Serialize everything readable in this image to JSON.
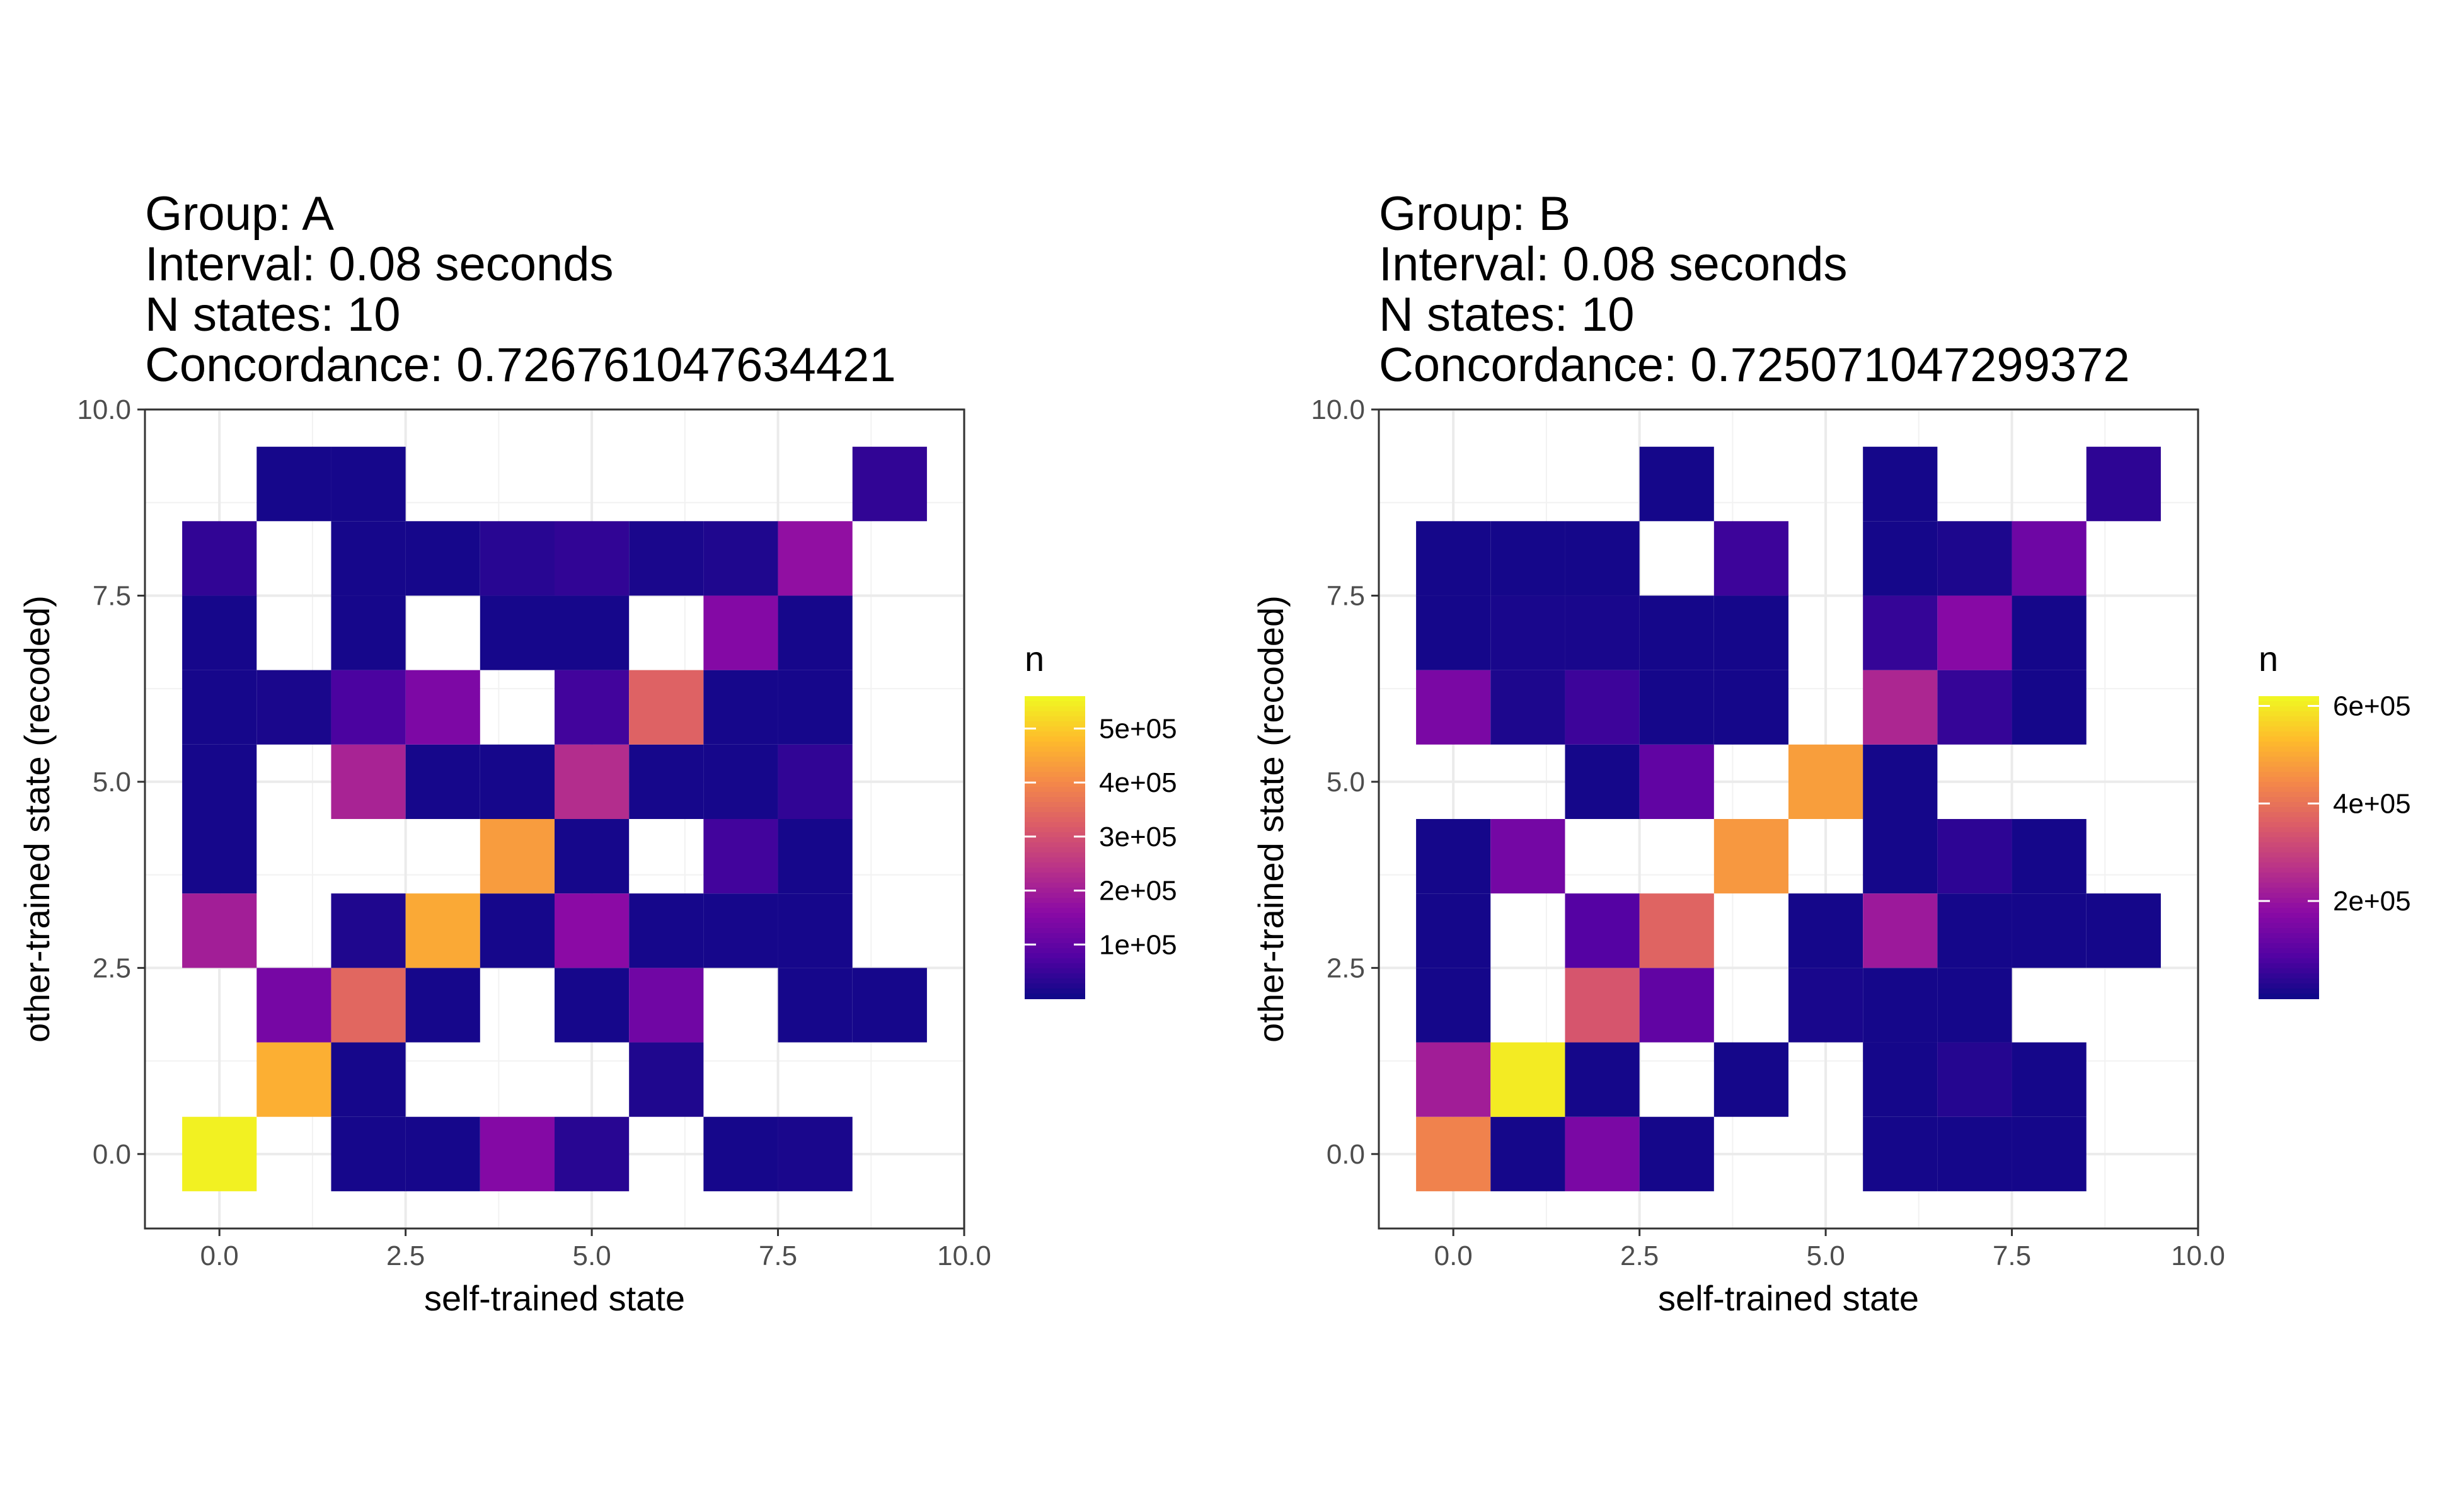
{
  "chart_data": [
    {
      "type": "heatmap",
      "title_lines": [
        "Group: A",
        "Interval: 0.08 seconds",
        "N states: 10",
        "Concordance: 0.726761047634421"
      ],
      "xlabel": "self-trained state",
      "ylabel": "other-trained state (recoded)",
      "xlim": [
        -1,
        10
      ],
      "ylim": [
        -1,
        10
      ],
      "x_ticks": [
        0,
        2.5,
        5,
        7.5,
        10
      ],
      "x_tick_labels": [
        "0.0",
        "2.5",
        "5.0",
        "7.5",
        "10.0"
      ],
      "y_ticks": [
        0,
        2.5,
        5,
        7.5,
        10
      ],
      "y_tick_labels": [
        "0.0",
        "2.5",
        "5.0",
        "7.5",
        "10.0"
      ],
      "grid": true,
      "colormap": "plasma",
      "color_range": [
        0,
        560000
      ],
      "legend": {
        "title": "n",
        "position": "right",
        "ticks": [
          100000,
          200000,
          300000,
          400000,
          500000
        ],
        "tick_labels": [
          "1e+05",
          "2e+05",
          "3e+05",
          "4e+05",
          "5e+05"
        ]
      },
      "cells": [
        {
          "x": 0,
          "y": 0,
          "n": 550000
        },
        {
          "x": 2,
          "y": 0,
          "n": 10000
        },
        {
          "x": 3,
          "y": 0,
          "n": 10000
        },
        {
          "x": 4,
          "y": 0,
          "n": 150000
        },
        {
          "x": 5,
          "y": 0,
          "n": 30000
        },
        {
          "x": 7,
          "y": 0,
          "n": 10000
        },
        {
          "x": 8,
          "y": 0,
          "n": 15000
        },
        {
          "x": 1,
          "y": 1,
          "n": 460000
        },
        {
          "x": 2,
          "y": 1,
          "n": 10000
        },
        {
          "x": 6,
          "y": 1,
          "n": 20000
        },
        {
          "x": 1,
          "y": 2,
          "n": 130000
        },
        {
          "x": 2,
          "y": 2,
          "n": 340000
        },
        {
          "x": 3,
          "y": 2,
          "n": 10000
        },
        {
          "x": 5,
          "y": 2,
          "n": 10000
        },
        {
          "x": 6,
          "y": 2,
          "n": 120000
        },
        {
          "x": 8,
          "y": 2,
          "n": 10000
        },
        {
          "x": 9,
          "y": 2,
          "n": 10000
        },
        {
          "x": 0,
          "y": 3,
          "n": 200000
        },
        {
          "x": 2,
          "y": 3,
          "n": 20000
        },
        {
          "x": 3,
          "y": 3,
          "n": 450000
        },
        {
          "x": 4,
          "y": 3,
          "n": 10000
        },
        {
          "x": 5,
          "y": 3,
          "n": 160000
        },
        {
          "x": 6,
          "y": 3,
          "n": 10000
        },
        {
          "x": 7,
          "y": 3,
          "n": 10000
        },
        {
          "x": 8,
          "y": 3,
          "n": 10000
        },
        {
          "x": 0,
          "y": 4,
          "n": 10000
        },
        {
          "x": 4,
          "y": 4,
          "n": 430000
        },
        {
          "x": 5,
          "y": 4,
          "n": 10000
        },
        {
          "x": 7,
          "y": 4,
          "n": 60000
        },
        {
          "x": 8,
          "y": 4,
          "n": 10000
        },
        {
          "x": 0,
          "y": 5,
          "n": 10000
        },
        {
          "x": 2,
          "y": 5,
          "n": 210000
        },
        {
          "x": 3,
          "y": 5,
          "n": 10000
        },
        {
          "x": 4,
          "y": 5,
          "n": 10000
        },
        {
          "x": 5,
          "y": 5,
          "n": 230000
        },
        {
          "x": 6,
          "y": 5,
          "n": 10000
        },
        {
          "x": 7,
          "y": 5,
          "n": 10000
        },
        {
          "x": 8,
          "y": 5,
          "n": 40000
        },
        {
          "x": 0,
          "y": 6,
          "n": 10000
        },
        {
          "x": 1,
          "y": 6,
          "n": 15000
        },
        {
          "x": 2,
          "y": 6,
          "n": 70000
        },
        {
          "x": 3,
          "y": 6,
          "n": 140000
        },
        {
          "x": 5,
          "y": 6,
          "n": 60000
        },
        {
          "x": 6,
          "y": 6,
          "n": 330000
        },
        {
          "x": 7,
          "y": 6,
          "n": 10000
        },
        {
          "x": 8,
          "y": 6,
          "n": 10000
        },
        {
          "x": 0,
          "y": 7,
          "n": 10000
        },
        {
          "x": 2,
          "y": 7,
          "n": 10000
        },
        {
          "x": 4,
          "y": 7,
          "n": 10000
        },
        {
          "x": 5,
          "y": 7,
          "n": 10000
        },
        {
          "x": 7,
          "y": 7,
          "n": 150000
        },
        {
          "x": 8,
          "y": 7,
          "n": 10000
        },
        {
          "x": 0,
          "y": 8,
          "n": 40000
        },
        {
          "x": 2,
          "y": 8,
          "n": 10000
        },
        {
          "x": 3,
          "y": 8,
          "n": 10000
        },
        {
          "x": 4,
          "y": 8,
          "n": 30000
        },
        {
          "x": 5,
          "y": 8,
          "n": 40000
        },
        {
          "x": 6,
          "y": 8,
          "n": 15000
        },
        {
          "x": 7,
          "y": 8,
          "n": 20000
        },
        {
          "x": 8,
          "y": 8,
          "n": 170000
        },
        {
          "x": 1,
          "y": 9,
          "n": 10000
        },
        {
          "x": 2,
          "y": 9,
          "n": 10000
        },
        {
          "x": 9,
          "y": 9,
          "n": 40000
        }
      ]
    },
    {
      "type": "heatmap",
      "title_lines": [
        "Group: B",
        "Interval: 0.08 seconds",
        "N states: 10",
        "Concordance: 0.725071047299372"
      ],
      "xlabel": "self-trained state",
      "ylabel": "other-trained state (recoded)",
      "xlim": [
        -1,
        10
      ],
      "ylim": [
        -1,
        10
      ],
      "x_ticks": [
        0,
        2.5,
        5,
        7.5,
        10
      ],
      "x_tick_labels": [
        "0.0",
        "2.5",
        "5.0",
        "7.5",
        "10.0"
      ],
      "y_ticks": [
        0,
        2.5,
        5,
        7.5,
        10
      ],
      "y_tick_labels": [
        "0.0",
        "2.5",
        "5.0",
        "7.5",
        "10.0"
      ],
      "grid": true,
      "colormap": "plasma",
      "color_range": [
        0,
        620000
      ],
      "legend": {
        "title": "n",
        "position": "right",
        "ticks": [
          200000,
          400000,
          600000
        ],
        "tick_labels": [
          "2e+05",
          "4e+05",
          "6e+05"
        ]
      },
      "cells": [
        {
          "x": 0,
          "y": 0,
          "n": 430000
        },
        {
          "x": 1,
          "y": 0,
          "n": 10000
        },
        {
          "x": 2,
          "y": 0,
          "n": 150000
        },
        {
          "x": 3,
          "y": 0,
          "n": 10000
        },
        {
          "x": 6,
          "y": 0,
          "n": 10000
        },
        {
          "x": 7,
          "y": 0,
          "n": 10000
        },
        {
          "x": 8,
          "y": 0,
          "n": 10000
        },
        {
          "x": 0,
          "y": 1,
          "n": 220000
        },
        {
          "x": 1,
          "y": 1,
          "n": 600000
        },
        {
          "x": 2,
          "y": 1,
          "n": 10000
        },
        {
          "x": 4,
          "y": 1,
          "n": 10000
        },
        {
          "x": 6,
          "y": 1,
          "n": 10000
        },
        {
          "x": 7,
          "y": 1,
          "n": 30000
        },
        {
          "x": 8,
          "y": 1,
          "n": 10000
        },
        {
          "x": 0,
          "y": 2,
          "n": 10000
        },
        {
          "x": 2,
          "y": 2,
          "n": 340000
        },
        {
          "x": 3,
          "y": 2,
          "n": 110000
        },
        {
          "x": 5,
          "y": 2,
          "n": 15000
        },
        {
          "x": 6,
          "y": 2,
          "n": 10000
        },
        {
          "x": 7,
          "y": 2,
          "n": 10000
        },
        {
          "x": 0,
          "y": 3,
          "n": 10000
        },
        {
          "x": 2,
          "y": 3,
          "n": 90000
        },
        {
          "x": 3,
          "y": 3,
          "n": 370000
        },
        {
          "x": 5,
          "y": 3,
          "n": 10000
        },
        {
          "x": 6,
          "y": 3,
          "n": 210000
        },
        {
          "x": 7,
          "y": 3,
          "n": 10000
        },
        {
          "x": 8,
          "y": 3,
          "n": 10000
        },
        {
          "x": 9,
          "y": 3,
          "n": 10000
        },
        {
          "x": 0,
          "y": 4,
          "n": 10000
        },
        {
          "x": 1,
          "y": 4,
          "n": 140000
        },
        {
          "x": 4,
          "y": 4,
          "n": 470000
        },
        {
          "x": 6,
          "y": 4,
          "n": 10000
        },
        {
          "x": 7,
          "y": 4,
          "n": 40000
        },
        {
          "x": 8,
          "y": 4,
          "n": 10000
        },
        {
          "x": 2,
          "y": 5,
          "n": 10000
        },
        {
          "x": 3,
          "y": 5,
          "n": 110000
        },
        {
          "x": 5,
          "y": 5,
          "n": 480000
        },
        {
          "x": 6,
          "y": 5,
          "n": 10000
        },
        {
          "x": 0,
          "y": 6,
          "n": 150000
        },
        {
          "x": 1,
          "y": 6,
          "n": 20000
        },
        {
          "x": 2,
          "y": 6,
          "n": 60000
        },
        {
          "x": 3,
          "y": 6,
          "n": 10000
        },
        {
          "x": 4,
          "y": 6,
          "n": 10000
        },
        {
          "x": 6,
          "y": 6,
          "n": 240000
        },
        {
          "x": 7,
          "y": 6,
          "n": 50000
        },
        {
          "x": 8,
          "y": 6,
          "n": 10000
        },
        {
          "x": 0,
          "y": 7,
          "n": 10000
        },
        {
          "x": 1,
          "y": 7,
          "n": 15000
        },
        {
          "x": 2,
          "y": 7,
          "n": 15000
        },
        {
          "x": 3,
          "y": 7,
          "n": 10000
        },
        {
          "x": 4,
          "y": 7,
          "n": 10000
        },
        {
          "x": 6,
          "y": 7,
          "n": 50000
        },
        {
          "x": 7,
          "y": 7,
          "n": 170000
        },
        {
          "x": 8,
          "y": 7,
          "n": 10000
        },
        {
          "x": 0,
          "y": 8,
          "n": 10000
        },
        {
          "x": 1,
          "y": 8,
          "n": 10000
        },
        {
          "x": 2,
          "y": 8,
          "n": 10000
        },
        {
          "x": 4,
          "y": 8,
          "n": 60000
        },
        {
          "x": 6,
          "y": 8,
          "n": 10000
        },
        {
          "x": 7,
          "y": 8,
          "n": 20000
        },
        {
          "x": 8,
          "y": 8,
          "n": 130000
        },
        {
          "x": 3,
          "y": 9,
          "n": 10000
        },
        {
          "x": 6,
          "y": 9,
          "n": 10000
        },
        {
          "x": 9,
          "y": 9,
          "n": 40000
        }
      ]
    }
  ]
}
